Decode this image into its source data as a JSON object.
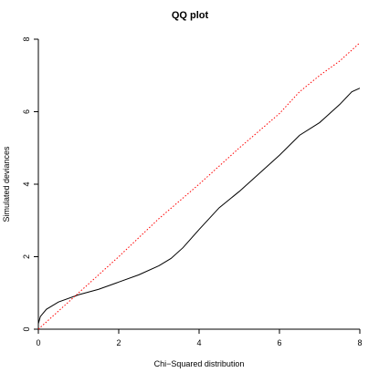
{
  "chart_data": {
    "type": "line",
    "title": "QQ plot",
    "x_label": "Chi−Squared distribution",
    "y_label": "Simulated deviances",
    "xlim": [
      0,
      8
    ],
    "ylim": [
      0,
      8
    ],
    "xticks": [
      0,
      2,
      4,
      6,
      8
    ],
    "yticks": [
      0,
      2,
      4,
      6,
      8
    ],
    "series": [
      {
        "color": "#000000",
        "style": "solid",
        "x": [
          0,
          0.05,
          0.2,
          0.5,
          1,
          1.5,
          2,
          2.5,
          3,
          3.3,
          3.6,
          4,
          4.5,
          5,
          5.5,
          6,
          6.5,
          7,
          7.5,
          7.8,
          8
        ],
        "values": [
          0.15,
          0.35,
          0.55,
          0.75,
          0.95,
          1.1,
          1.3,
          1.5,
          1.75,
          1.95,
          2.25,
          2.75,
          3.35,
          3.8,
          4.3,
          4.8,
          5.35,
          5.7,
          6.2,
          6.55,
          6.65
        ]
      },
      {
        "color": "#ff0000",
        "style": "dotted",
        "x": [
          0,
          1,
          2,
          3,
          4,
          5,
          6,
          6.5,
          7,
          7.5,
          8
        ],
        "values": [
          0,
          1,
          2,
          3.05,
          4,
          5,
          5.95,
          6.55,
          7.0,
          7.4,
          7.9
        ]
      }
    ]
  }
}
